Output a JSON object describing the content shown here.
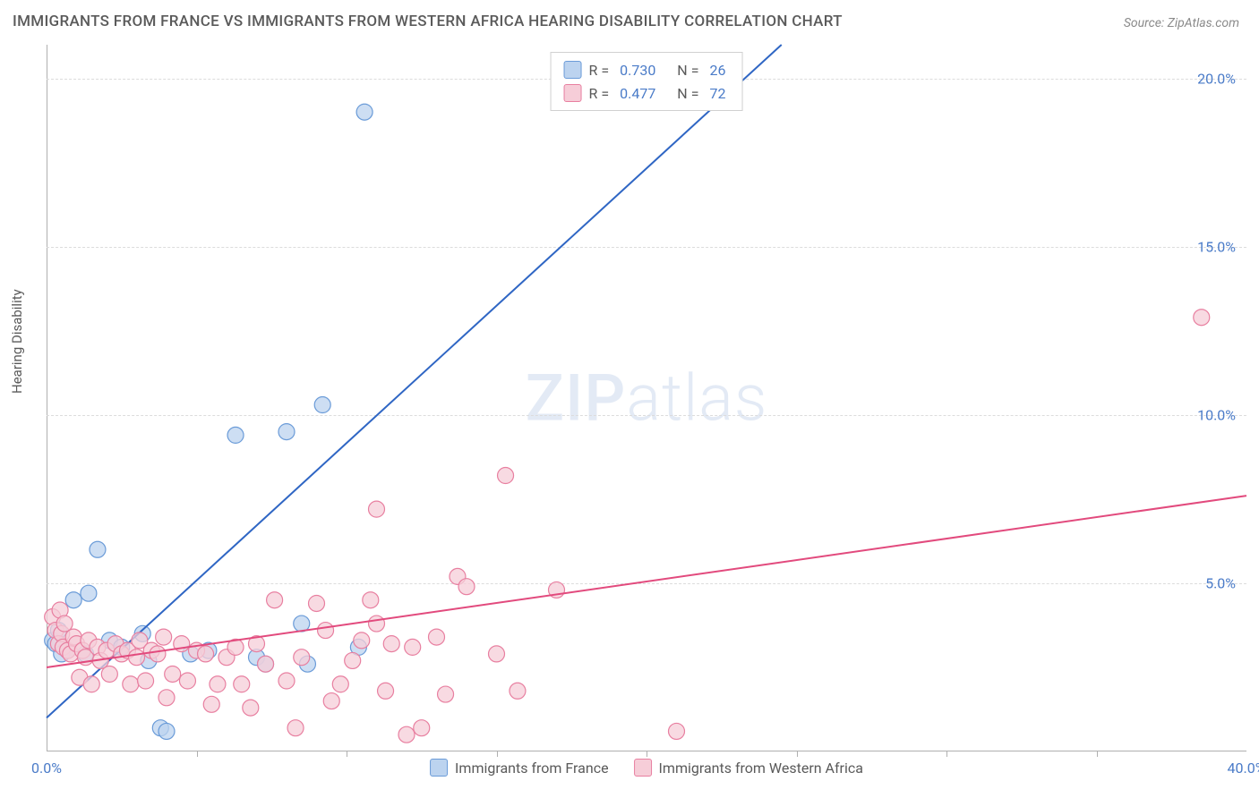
{
  "title": "IMMIGRANTS FROM FRANCE VS IMMIGRANTS FROM WESTERN AFRICA HEARING DISABILITY CORRELATION CHART",
  "source": "Source: ZipAtlas.com",
  "y_axis_label": "Hearing Disability",
  "watermark_a": "ZIP",
  "watermark_b": "atlas",
  "chart": {
    "type": "scatter",
    "xlim": [
      0,
      40
    ],
    "ylim": [
      0,
      21
    ],
    "x_ticks": [
      0,
      40
    ],
    "x_tick_labels": [
      "0.0%",
      "40.0%"
    ],
    "x_minor_ticks": [
      5,
      10,
      15,
      20,
      25,
      30,
      35
    ],
    "y_ticks": [
      5,
      10,
      15,
      20
    ],
    "y_tick_labels": [
      "5.0%",
      "10.0%",
      "15.0%",
      "20.0%"
    ],
    "grid_color": "#dcdcdc",
    "axis_color": "#b0b0b0",
    "background_color": "#ffffff",
    "marker_radius": 9,
    "marker_stroke_width": 1.2,
    "line_width": 2,
    "series": [
      {
        "name": "Immigrants from France",
        "color_fill": "#bcd3ef",
        "color_stroke": "#6a9bd8",
        "line_color": "#2f66c4",
        "r": "0.730",
        "n": "26",
        "trend": {
          "x1": 0,
          "y1": 1.0,
          "x2": 24.5,
          "y2": 21.0
        },
        "points": [
          [
            0.2,
            3.3
          ],
          [
            0.3,
            3.2
          ],
          [
            0.4,
            3.6
          ],
          [
            0.5,
            2.9
          ],
          [
            0.7,
            3.0
          ],
          [
            0.9,
            4.5
          ],
          [
            1.3,
            2.9
          ],
          [
            1.4,
            4.7
          ],
          [
            1.7,
            6.0
          ],
          [
            2.1,
            3.3
          ],
          [
            2.5,
            3.1
          ],
          [
            3.2,
            3.5
          ],
          [
            3.4,
            2.7
          ],
          [
            3.8,
            0.7
          ],
          [
            4.0,
            0.6
          ],
          [
            4.8,
            2.9
          ],
          [
            5.4,
            3.0
          ],
          [
            6.3,
            9.4
          ],
          [
            7.0,
            2.8
          ],
          [
            7.3,
            2.6
          ],
          [
            8.0,
            9.5
          ],
          [
            8.5,
            3.8
          ],
          [
            8.7,
            2.6
          ],
          [
            9.2,
            10.3
          ],
          [
            10.4,
            3.1
          ],
          [
            10.6,
            19.0
          ]
        ]
      },
      {
        "name": "Immigrants from Western Africa",
        "color_fill": "#f6cdd8",
        "color_stroke": "#e87fa0",
        "line_color": "#e24a7d",
        "r": "0.477",
        "n": "72",
        "trend": {
          "x1": 0,
          "y1": 2.5,
          "x2": 40,
          "y2": 7.6
        },
        "points": [
          [
            0.2,
            4.0
          ],
          [
            0.3,
            3.6
          ],
          [
            0.4,
            3.2
          ],
          [
            0.45,
            4.2
          ],
          [
            0.5,
            3.5
          ],
          [
            0.55,
            3.1
          ],
          [
            0.6,
            3.8
          ],
          [
            0.7,
            3.0
          ],
          [
            0.8,
            2.9
          ],
          [
            0.9,
            3.4
          ],
          [
            1.0,
            3.2
          ],
          [
            1.1,
            2.2
          ],
          [
            1.2,
            3.0
          ],
          [
            1.3,
            2.8
          ],
          [
            1.4,
            3.3
          ],
          [
            1.5,
            2.0
          ],
          [
            1.7,
            3.1
          ],
          [
            1.8,
            2.7
          ],
          [
            2.0,
            3.0
          ],
          [
            2.1,
            2.3
          ],
          [
            2.3,
            3.2
          ],
          [
            2.5,
            2.9
          ],
          [
            2.7,
            3.0
          ],
          [
            2.8,
            2.0
          ],
          [
            3.0,
            2.8
          ],
          [
            3.1,
            3.3
          ],
          [
            3.3,
            2.1
          ],
          [
            3.5,
            3.0
          ],
          [
            3.7,
            2.9
          ],
          [
            3.9,
            3.4
          ],
          [
            4.0,
            1.6
          ],
          [
            4.2,
            2.3
          ],
          [
            4.5,
            3.2
          ],
          [
            4.7,
            2.1
          ],
          [
            5.0,
            3.0
          ],
          [
            5.3,
            2.9
          ],
          [
            5.5,
            1.4
          ],
          [
            5.7,
            2.0
          ],
          [
            6.0,
            2.8
          ],
          [
            6.3,
            3.1
          ],
          [
            6.5,
            2.0
          ],
          [
            6.8,
            1.3
          ],
          [
            7.0,
            3.2
          ],
          [
            7.3,
            2.6
          ],
          [
            7.6,
            4.5
          ],
          [
            8.0,
            2.1
          ],
          [
            8.3,
            0.7
          ],
          [
            8.5,
            2.8
          ],
          [
            9.0,
            4.4
          ],
          [
            9.3,
            3.6
          ],
          [
            9.5,
            1.5
          ],
          [
            9.8,
            2.0
          ],
          [
            10.2,
            2.7
          ],
          [
            10.5,
            3.3
          ],
          [
            10.8,
            4.5
          ],
          [
            11.0,
            7.2
          ],
          [
            11.0,
            3.8
          ],
          [
            11.3,
            1.8
          ],
          [
            11.5,
            3.2
          ],
          [
            12.0,
            0.5
          ],
          [
            12.2,
            3.1
          ],
          [
            12.5,
            0.7
          ],
          [
            13.0,
            3.4
          ],
          [
            13.3,
            1.7
          ],
          [
            13.7,
            5.2
          ],
          [
            14.0,
            4.9
          ],
          [
            15.0,
            2.9
          ],
          [
            15.3,
            8.2
          ],
          [
            15.7,
            1.8
          ],
          [
            17.0,
            4.8
          ],
          [
            21.0,
            0.6
          ],
          [
            38.5,
            12.9
          ]
        ]
      }
    ]
  },
  "legend_top_labels": {
    "r": "R =",
    "n": "N ="
  },
  "title_fontsize": 17,
  "label_fontsize": 15,
  "tick_fontsize": 16
}
